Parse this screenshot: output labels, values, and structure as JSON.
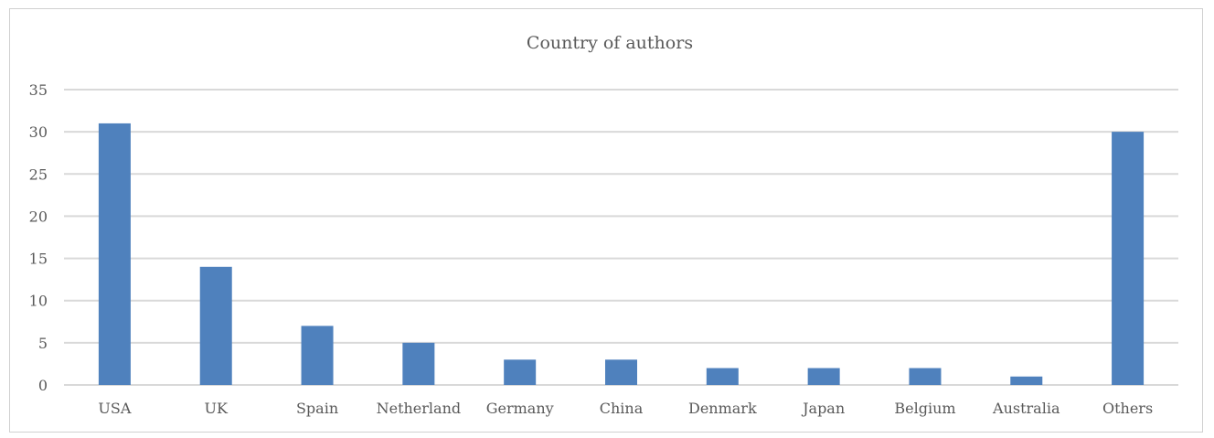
{
  "chart_data": {
    "type": "bar",
    "title": "Country of authors",
    "categories": [
      "USA",
      "UK",
      "Spain",
      "Netherland",
      "Germany",
      "China",
      "Denmark",
      "Japan",
      "Belgium",
      "Australia",
      "Others"
    ],
    "values": [
      31,
      14,
      7,
      5,
      3,
      3,
      2,
      2,
      2,
      1,
      30
    ],
    "ylim": [
      0,
      35
    ],
    "yticks": [
      0,
      5,
      10,
      15,
      20,
      25,
      30,
      35
    ],
    "grid": true,
    "legend": "none",
    "colors": {
      "bar": "#4f81bd",
      "grid": "#d9d9d9",
      "text": "#595959"
    }
  }
}
